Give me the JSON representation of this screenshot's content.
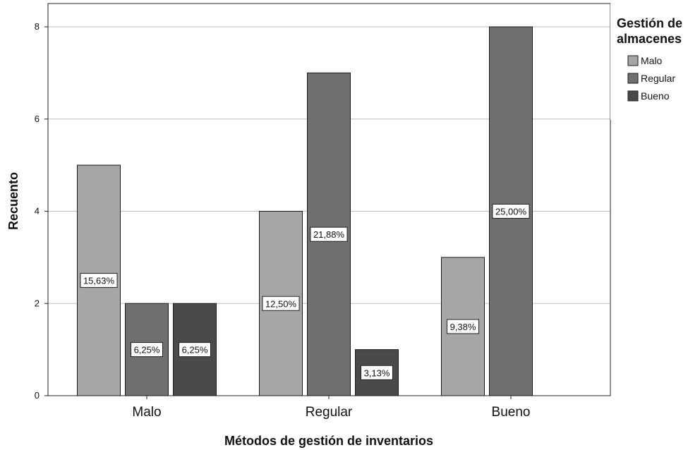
{
  "chart_data": {
    "type": "bar",
    "xlabel": "Métodos de gestión de inventarios",
    "ylabel": "Recuento",
    "categories": [
      "Malo",
      "Regular",
      "Bueno"
    ],
    "ylim": [
      0,
      8
    ],
    "yticks": [
      0,
      2,
      4,
      6,
      8
    ],
    "grid": true,
    "legend_title_lines": [
      "Gestión de",
      "almacenes"
    ],
    "legend_position": "right",
    "series": [
      {
        "name": "Malo",
        "color": "#a6a6a6",
        "values": [
          5,
          4,
          3
        ],
        "labels": [
          "15,63%",
          "12,50%",
          "9,38%"
        ]
      },
      {
        "name": "Regular",
        "color": "#707070",
        "values": [
          2,
          7,
          8
        ],
        "labels": [
          "6,25%",
          "21,88%",
          "25,00%"
        ]
      },
      {
        "name": "Bueno",
        "color": "#4a4a4a",
        "values": [
          2,
          1,
          0
        ],
        "labels": [
          "6,25%",
          "3,13%",
          ""
        ]
      }
    ]
  }
}
